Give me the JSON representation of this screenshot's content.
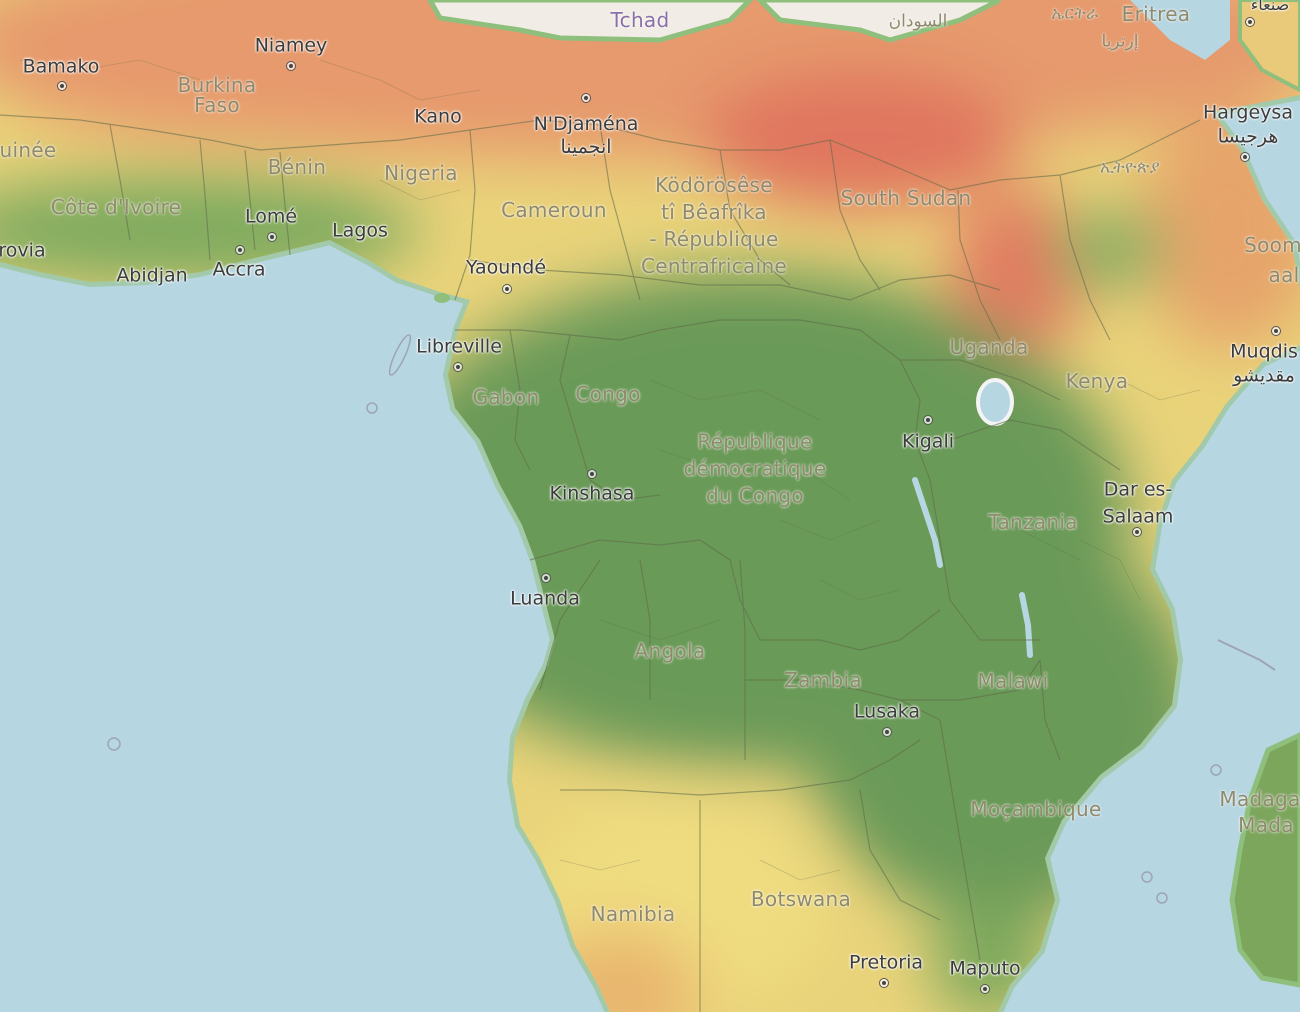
{
  "map": {
    "countries": [
      {
        "name": "Tchad",
        "size": 20,
        "color": "#8a6fa8"
      },
      {
        "name": "Burkina\nFaso"
      },
      {
        "name": "Bénin"
      },
      {
        "name": "Nigeria"
      },
      {
        "name": "Côte d'Ivoire"
      },
      {
        "name": "Cameroun"
      },
      {
        "name": "Ködörösêse\ntî Bêafrîka\n- République\nCentrafricaine"
      },
      {
        "name": "South Sudan"
      },
      {
        "name": "Gabon"
      },
      {
        "name": "Congo"
      },
      {
        "name": "République\ndémocratique\ndu Congo"
      },
      {
        "name": "Uganda"
      },
      {
        "name": "Kenya"
      },
      {
        "name": "Tanzania"
      },
      {
        "name": "Angola"
      },
      {
        "name": "Zambia"
      },
      {
        "name": "Malawi"
      },
      {
        "name": "Moçambique"
      },
      {
        "name": "Namibia"
      },
      {
        "name": "Botswana"
      },
      {
        "name": "Eritrea"
      },
      {
        "name": "ኤርትራ"
      },
      {
        "name": "إرتريا"
      },
      {
        "name": "السودان"
      },
      {
        "name": "ኢትዮጵያ"
      },
      {
        "name": "Soom"
      },
      {
        "name": "aal"
      },
      {
        "name": "Madaga"
      },
      {
        "name": "Mada"
      },
      {
        "name": "uinée"
      }
    ],
    "cities": [
      {
        "name": "Bamako",
        "marker": true
      },
      {
        "name": "Niamey",
        "marker": true
      },
      {
        "name": "Kano"
      },
      {
        "name": "N'Djaména\nانجمينا",
        "marker": true
      },
      {
        "name": "Lomé",
        "marker": true
      },
      {
        "name": "Lagos"
      },
      {
        "name": "rovia"
      },
      {
        "name": "Abidjan"
      },
      {
        "name": "Accra",
        "marker": true
      },
      {
        "name": "Yaoundé",
        "marker": true
      },
      {
        "name": "Libreville",
        "marker": true
      },
      {
        "name": "Kinshasa",
        "marker": true
      },
      {
        "name": "Luanda",
        "marker": true
      },
      {
        "name": "Kigali",
        "marker": true
      },
      {
        "name": "Lusaka",
        "marker": true
      },
      {
        "name": "Hargeysa\nهرجيسا",
        "marker": true
      },
      {
        "name": "Muqdis\nمقديشو",
        "marker": true
      },
      {
        "name": "Dar es-\nSalaam",
        "marker": true
      },
      {
        "name": "Pretoria",
        "marker": true
      },
      {
        "name": "Maputo",
        "marker": true
      },
      {
        "name": "صنعاء",
        "marker": true
      }
    ],
    "colors": {
      "ocean": "#b6d6e2",
      "land_neutral": "#efeae0",
      "humid": "#6b9a58",
      "moderate": "#ead977",
      "dry": "#e68a66",
      "very_dry": "#e07462",
      "borders": "#5f6a48"
    }
  }
}
